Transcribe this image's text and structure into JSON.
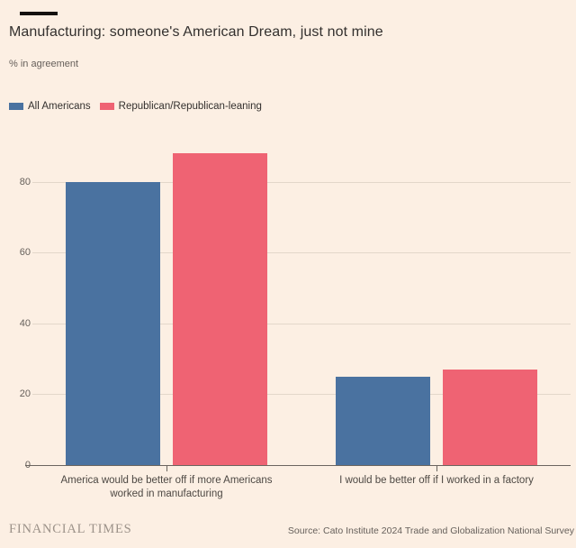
{
  "chart_data": {
    "type": "bar",
    "title": "Manufacturing: someone's American Dream, just not mine",
    "subtitle": "% in agreement",
    "categories": [
      "America would be better off if more Americans worked in manufacturing",
      "I would be better off if I worked in a factory"
    ],
    "category_lines": [
      [
        "America would be better off if more Americans",
        "worked in manufacturing"
      ],
      [
        "I would be better off if I worked in a factory"
      ]
    ],
    "series": [
      {
        "name": "All Americans",
        "color": "#4A72A0",
        "values": [
          80,
          25
        ]
      },
      {
        "name": "Republican/Republican-leaning",
        "color": "#EF6373",
        "values": [
          88,
          27
        ]
      }
    ],
    "xlabel": "",
    "ylabel": "% in agreement",
    "yticks": [
      0,
      20,
      40,
      60,
      80
    ],
    "ylim": [
      0,
      92
    ],
    "grid": true,
    "legend_position": "top-left"
  },
  "footer": {
    "brand": "FINANCIAL TIMES",
    "source": "Source: Cato Institute 2024 Trade and Globalization National Survey"
  },
  "colors": {
    "background": "#FCEFE3",
    "accent_bar": "#141210",
    "series_blue": "#4A72A0",
    "series_red": "#EF6373",
    "gridline": "#E3D7CA",
    "axis_line": "#6B655F",
    "text_dark": "#33302E",
    "text_muted": "#66605B",
    "brand_text": "#9C9289"
  }
}
